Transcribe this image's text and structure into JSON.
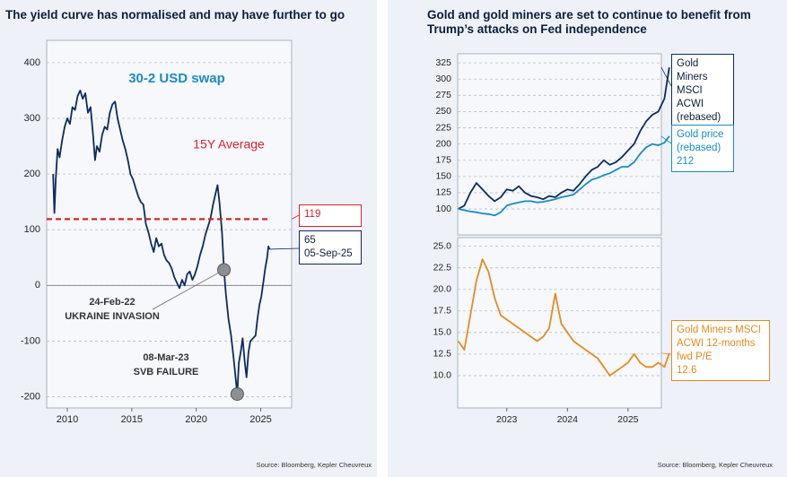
{
  "chart_data": [
    {
      "type": "line",
      "title": "The yield curve has normalised and may have further to go",
      "source": "Source: Bloomberg, Kepler Cheuvreux",
      "x": [
        2008.9,
        2009.0,
        2009.1,
        2009.25,
        2009.4,
        2009.6,
        2009.8,
        2010.0,
        2010.2,
        2010.4,
        2010.6,
        2010.8,
        2011.0,
        2011.2,
        2011.4,
        2011.6,
        2011.8,
        2012.0,
        2012.15,
        2012.3,
        2012.5,
        2012.7,
        2012.9,
        2013.1,
        2013.3,
        2013.5,
        2013.7,
        2013.9,
        2014.1,
        2014.3,
        2014.5,
        2014.7,
        2014.9,
        2015.1,
        2015.3,
        2015.5,
        2015.7,
        2015.9,
        2016.1,
        2016.3,
        2016.5,
        2016.7,
        2016.9,
        2017.1,
        2017.3,
        2017.5,
        2017.7,
        2017.9,
        2018.1,
        2018.3,
        2018.5,
        2018.7,
        2018.9,
        2019.1,
        2019.3,
        2019.5,
        2019.7,
        2019.9,
        2020.1,
        2020.3,
        2020.5,
        2020.7,
        2020.9,
        2021.1,
        2021.3,
        2021.5,
        2021.65,
        2021.8,
        2022.0,
        2022.15,
        2022.3,
        2022.5,
        2022.7,
        2022.9,
        2023.05,
        2023.18,
        2023.3,
        2023.45,
        2023.6,
        2023.75,
        2023.9,
        2024.05,
        2024.2,
        2024.4,
        2024.6,
        2024.75,
        2024.9,
        2025.05,
        2025.2,
        2025.35,
        2025.5,
        2025.6,
        2025.68
      ],
      "series": [
        {
          "name": "30-2 USD swap",
          "color": "#0d2b5e",
          "values": [
            200,
            130,
            190,
            245,
            230,
            260,
            285,
            300,
            290,
            320,
            315,
            340,
            350,
            335,
            345,
            310,
            320,
            270,
            225,
            250,
            240,
            270,
            285,
            280,
            310,
            325,
            330,
            300,
            280,
            260,
            245,
            225,
            200,
            190,
            175,
            160,
            150,
            145,
            110,
            95,
            75,
            60,
            85,
            70,
            75,
            55,
            45,
            40,
            30,
            15,
            5,
            -5,
            10,
            0,
            20,
            25,
            10,
            20,
            35,
            55,
            70,
            90,
            105,
            120,
            145,
            165,
            180,
            150,
            95,
            28,
            -15,
            -60,
            -90,
            -130,
            -165,
            -195,
            -140,
            -120,
            -95,
            -135,
            -165,
            -120,
            -100,
            -95,
            -90,
            -60,
            -35,
            -20,
            5,
            30,
            50,
            70,
            65
          ]
        }
      ],
      "last_date": "05-Sep-25",
      "average": {
        "label": "15Y Average",
        "value": 119,
        "color": "#d9232e"
      },
      "events": [
        {
          "date": "24-Feb-22",
          "label": "UKRAINE INVASION",
          "x": 2022.15,
          "y": 28
        },
        {
          "date": "08-Mar-23",
          "label": "SVB FAILURE",
          "x": 2023.18,
          "y": -195
        }
      ],
      "xlim": [
        2008.4,
        2027.4
      ],
      "xticks": [
        2010,
        2015,
        2020,
        2025
      ],
      "ylim": [
        -220,
        440
      ],
      "yticks": [
        -200,
        -100,
        0,
        100,
        200,
        300,
        400
      ],
      "grid": true
    },
    {
      "type": "line",
      "title": "Gold and gold miners are set to continue to benefit from Trump’s attacks on Fed independence",
      "x": [
        2022.2,
        2022.3,
        2022.4,
        2022.5,
        2022.6,
        2022.7,
        2022.8,
        2022.9,
        2023.0,
        2023.1,
        2023.2,
        2023.3,
        2023.4,
        2023.5,
        2023.6,
        2023.7,
        2023.8,
        2023.9,
        2024.0,
        2024.1,
        2024.2,
        2024.3,
        2024.4,
        2024.5,
        2024.6,
        2024.7,
        2024.8,
        2024.9,
        2025.0,
        2025.1,
        2025.2,
        2025.3,
        2025.4,
        2025.5,
        2025.6,
        2025.68
      ],
      "series": [
        {
          "name": "Gold Miners MSCI ACWI (rebased)",
          "color": "#0d2b5e",
          "values": [
            100,
            105,
            125,
            140,
            130,
            120,
            112,
            118,
            130,
            128,
            135,
            125,
            120,
            118,
            115,
            120,
            118,
            125,
            130,
            128,
            138,
            150,
            160,
            165,
            175,
            168,
            172,
            180,
            190,
            200,
            220,
            235,
            245,
            250,
            270,
            318
          ]
        },
        {
          "name": "Gold price (rebased)",
          "color": "#1a8ac6",
          "values": [
            100,
            98,
            96,
            95,
            93,
            92,
            90,
            95,
            105,
            108,
            110,
            112,
            112,
            110,
            111,
            113,
            115,
            118,
            120,
            122,
            130,
            138,
            145,
            148,
            152,
            155,
            160,
            165,
            165,
            172,
            185,
            195,
            200,
            198,
            202,
            212
          ]
        }
      ],
      "xlim": [
        2022.19,
        2025.55
      ],
      "ylim": [
        60,
        339
      ],
      "yticks": [
        100,
        125,
        150,
        175,
        200,
        225,
        250,
        275,
        300,
        325
      ],
      "grid": true
    },
    {
      "type": "line",
      "source": "Source: Bloomberg, Kepler Cheuvreux",
      "x": [
        2022.2,
        2022.3,
        2022.4,
        2022.5,
        2022.6,
        2022.7,
        2022.8,
        2022.9,
        2023.0,
        2023.1,
        2023.2,
        2023.3,
        2023.4,
        2023.5,
        2023.6,
        2023.7,
        2023.8,
        2023.9,
        2024.0,
        2024.1,
        2024.2,
        2024.3,
        2024.4,
        2024.5,
        2024.6,
        2024.7,
        2024.8,
        2024.9,
        2025.0,
        2025.1,
        2025.2,
        2025.3,
        2025.4,
        2025.5,
        2025.6,
        2025.68
      ],
      "series": [
        {
          "name": "Gold Miners MSCI ACWI 12-months fwd P/E",
          "color": "#e38b22",
          "values": [
            14,
            13,
            17,
            21,
            23.5,
            22,
            19,
            17,
            16.5,
            16,
            15.5,
            15,
            14.5,
            14,
            14.5,
            15.5,
            19.5,
            16,
            15,
            14,
            13.5,
            13,
            12.5,
            12,
            11,
            10,
            10.5,
            11,
            11.5,
            12.5,
            11.5,
            11,
            11,
            11.5,
            11,
            12.6
          ]
        }
      ],
      "xlim": [
        2022.19,
        2025.55
      ],
      "xticks": [
        2023,
        2024,
        2025
      ],
      "ylim": [
        6.25,
        26
      ],
      "yticks": [
        {
          "value": 25,
          "label": "25.0"
        },
        22.5,
        {
          "value": 20,
          "label": "20.0"
        },
        17.5,
        {
          "value": 15,
          "label": "15.0"
        },
        12.5,
        {
          "value": 10,
          "label": "10.0"
        }
      ],
      "grid": true
    }
  ]
}
